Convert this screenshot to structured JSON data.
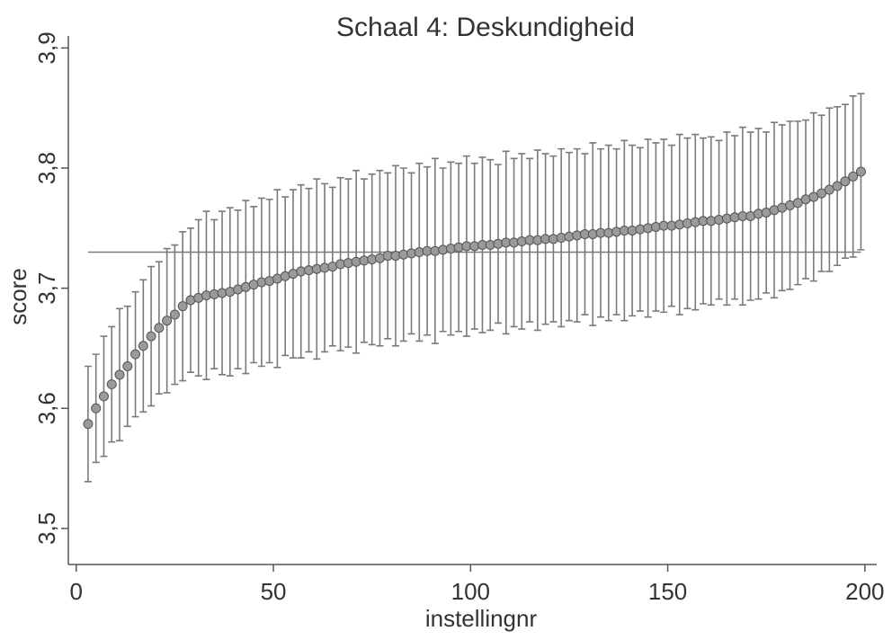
{
  "chart_data": {
    "type": "errorbar",
    "title": "Schaal 4: Deskundigheid",
    "x_label": "instellingnr",
    "y_label": "score",
    "xlim": [
      -2,
      203
    ],
    "ylim": [
      3.47,
      3.91
    ],
    "xticks": [
      0,
      50,
      100,
      150,
      200
    ],
    "yticks": [
      {
        "value": 3.5,
        "label": "3,5"
      },
      {
        "value": 3.6,
        "label": "3,6"
      },
      {
        "value": 3.7,
        "label": "3,7"
      },
      {
        "value": 3.8,
        "label": "3,8"
      },
      {
        "value": 3.9,
        "label": "3,9"
      }
    ],
    "hline": 3.73,
    "color": "#7a7a7a",
    "marker_color": "#9a9a9a",
    "x": [
      3,
      5,
      7,
      9,
      11,
      13,
      15,
      17,
      19,
      21,
      23,
      25,
      27,
      29,
      31,
      33,
      35,
      37,
      39,
      41,
      43,
      45,
      47,
      49,
      51,
      53,
      55,
      57,
      59,
      61,
      63,
      65,
      67,
      69,
      71,
      73,
      75,
      77,
      79,
      81,
      83,
      85,
      87,
      89,
      91,
      93,
      95,
      97,
      99,
      101,
      103,
      105,
      107,
      109,
      111,
      113,
      115,
      117,
      119,
      121,
      123,
      125,
      127,
      129,
      131,
      133,
      135,
      137,
      139,
      141,
      143,
      145,
      147,
      149,
      151,
      153,
      155,
      157,
      159,
      161,
      163,
      165,
      167,
      169,
      171,
      173,
      175,
      177,
      179,
      181,
      183,
      185,
      187,
      189,
      191,
      193,
      195,
      197,
      199
    ],
    "values": [
      3.587,
      3.6,
      3.61,
      3.62,
      3.628,
      3.635,
      3.645,
      3.652,
      3.66,
      3.667,
      3.673,
      3.678,
      3.685,
      3.69,
      3.692,
      3.694,
      3.695,
      3.696,
      3.697,
      3.699,
      3.701,
      3.703,
      3.705,
      3.706,
      3.708,
      3.71,
      3.712,
      3.714,
      3.715,
      3.716,
      3.717,
      3.718,
      3.72,
      3.721,
      3.722,
      3.723,
      3.724,
      3.725,
      3.727,
      3.727,
      3.728,
      3.729,
      3.73,
      3.731,
      3.731,
      3.732,
      3.733,
      3.734,
      3.735,
      3.735,
      3.736,
      3.736,
      3.737,
      3.738,
      3.738,
      3.739,
      3.74,
      3.74,
      3.741,
      3.741,
      3.742,
      3.743,
      3.744,
      3.745,
      3.745,
      3.746,
      3.746,
      3.747,
      3.748,
      3.748,
      3.749,
      3.75,
      3.751,
      3.752,
      3.752,
      3.753,
      3.754,
      3.755,
      3.756,
      3.756,
      3.757,
      3.758,
      3.759,
      3.76,
      3.76,
      3.762,
      3.763,
      3.765,
      3.767,
      3.769,
      3.771,
      3.774,
      3.776,
      3.779,
      3.782,
      3.785,
      3.789,
      3.793,
      3.797
    ],
    "errors": [
      0.048,
      0.045,
      0.05,
      0.048,
      0.055,
      0.05,
      0.052,
      0.055,
      0.058,
      0.055,
      0.06,
      0.058,
      0.062,
      0.06,
      0.065,
      0.07,
      0.062,
      0.068,
      0.07,
      0.066,
      0.072,
      0.065,
      0.07,
      0.068,
      0.074,
      0.066,
      0.07,
      0.072,
      0.068,
      0.075,
      0.07,
      0.066,
      0.072,
      0.07,
      0.076,
      0.068,
      0.071,
      0.073,
      0.069,
      0.075,
      0.072,
      0.067,
      0.074,
      0.07,
      0.077,
      0.068,
      0.072,
      0.07,
      0.075,
      0.069,
      0.073,
      0.071,
      0.066,
      0.076,
      0.07,
      0.073,
      0.068,
      0.075,
      0.071,
      0.069,
      0.074,
      0.07,
      0.072,
      0.067,
      0.076,
      0.07,
      0.073,
      0.069,
      0.075,
      0.071,
      0.068,
      0.074,
      0.07,
      0.072,
      0.067,
      0.075,
      0.071,
      0.073,
      0.069,
      0.07,
      0.066,
      0.072,
      0.068,
      0.074,
      0.07,
      0.071,
      0.067,
      0.073,
      0.069,
      0.07,
      0.068,
      0.066,
      0.07,
      0.065,
      0.068,
      0.066,
      0.064,
      0.067,
      0.065
    ]
  }
}
